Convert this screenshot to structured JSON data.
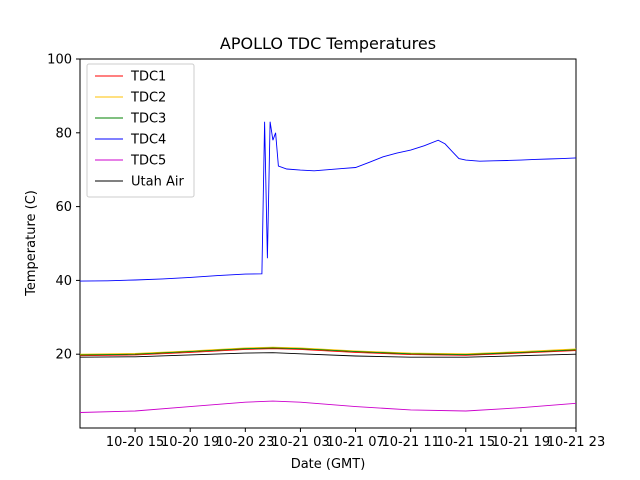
{
  "chart_data": {
    "type": "line",
    "title": "APOLLO TDC Temperatures",
    "xlabel": "Date (GMT)",
    "ylabel": "Temperature (C)",
    "ylim": [
      0,
      100
    ],
    "xlim": [
      0,
      36
    ],
    "yticks": [
      20,
      40,
      60,
      80,
      100
    ],
    "x_ticks": [
      {
        "x": 4,
        "label": "10-20 15"
      },
      {
        "x": 8,
        "label": "10-20 19"
      },
      {
        "x": 12,
        "label": "10-20 23"
      },
      {
        "x": 16,
        "label": "10-21 03"
      },
      {
        "x": 20,
        "label": "10-21 07"
      },
      {
        "x": 24,
        "label": "10-21 11"
      },
      {
        "x": 28,
        "label": "10-21 15"
      },
      {
        "x": 32,
        "label": "10-21 19"
      },
      {
        "x": 36,
        "label": "10-21 23"
      }
    ],
    "legend_position": "top-left",
    "grid": false,
    "series": [
      {
        "name": "TDC1",
        "color": "#ff0000",
        "x": [
          0,
          4,
          8,
          12,
          14,
          16,
          20,
          24,
          28,
          32,
          36
        ],
        "y": [
          19.6,
          19.8,
          20.5,
          21.3,
          21.5,
          21.3,
          20.5,
          19.9,
          19.7,
          20.3,
          21.0
        ]
      },
      {
        "name": "TDC2",
        "color": "#ffc000",
        "x": [
          0,
          4,
          8,
          12,
          14,
          16,
          20,
          24,
          28,
          32,
          36
        ],
        "y": [
          20.0,
          20.2,
          20.9,
          21.7,
          21.9,
          21.7,
          20.9,
          20.3,
          20.1,
          20.7,
          21.4
        ]
      },
      {
        "name": "TDC3",
        "color": "#008000",
        "x": [
          0,
          4,
          8,
          12,
          14,
          16,
          20,
          24,
          28,
          32,
          36
        ],
        "y": [
          19.8,
          20.0,
          20.7,
          21.5,
          21.7,
          21.5,
          20.7,
          20.1,
          19.9,
          20.5,
          21.2
        ]
      },
      {
        "name": "TDC4",
        "color": "#0000ff",
        "x": [
          0,
          2,
          4,
          6,
          8,
          10,
          12,
          13.2,
          13.4,
          13.6,
          13.8,
          14,
          14.2,
          14.4,
          15,
          16,
          17,
          18,
          19,
          20,
          21,
          22,
          23,
          24,
          25,
          26,
          26.5,
          27,
          27.5,
          28,
          29,
          30,
          31,
          32,
          33,
          34,
          35,
          36
        ],
        "y": [
          39.8,
          39.9,
          40.1,
          40.4,
          40.8,
          41.3,
          41.7,
          41.8,
          83.0,
          46.0,
          83.0,
          78.0,
          80.0,
          71.0,
          70.2,
          69.9,
          69.7,
          70.0,
          70.3,
          70.6,
          72.0,
          73.5,
          74.5,
          75.3,
          76.5,
          78.0,
          77.0,
          75.0,
          73.0,
          72.6,
          72.3,
          72.4,
          72.5,
          72.6,
          72.8,
          72.9,
          73.0,
          73.2
        ]
      },
      {
        "name": "TDC5",
        "color": "#cc00cc",
        "x": [
          0,
          4,
          8,
          12,
          14,
          16,
          20,
          24,
          28,
          32,
          36
        ],
        "y": [
          4.2,
          4.6,
          5.8,
          7.0,
          7.3,
          7.0,
          5.8,
          4.9,
          4.6,
          5.5,
          6.7
        ]
      },
      {
        "name": "Utah Air",
        "color": "#000000",
        "x": [
          0,
          4,
          8,
          12,
          14,
          16,
          20,
          24,
          28,
          32,
          36
        ],
        "y": [
          19.2,
          19.3,
          19.8,
          20.3,
          20.4,
          20.1,
          19.5,
          19.2,
          19.2,
          19.6,
          20.0
        ]
      }
    ]
  }
}
